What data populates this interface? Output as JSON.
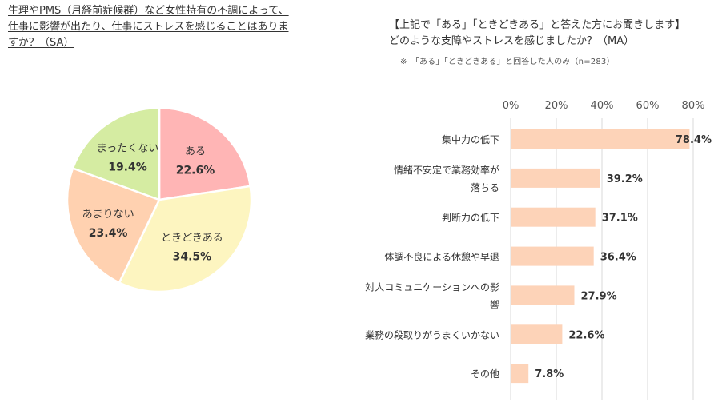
{
  "left_question": {
    "line1": "生理やPMS（月経前症候群）など女性特有の不調によって、",
    "line2": "仕事に影響が出たり、仕事にストレスを感じることはありま",
    "line3": "すか？（SA）"
  },
  "right_question": {
    "line1": "【上記で「ある」「ときどきある」と答えた方にお聞きします】",
    "line2": "どのような支障やストレスを感じましたか？（MA）",
    "note": "※　「ある」「ときどきある」と回答した人のみ（n=283）"
  },
  "chart_data": [
    {
      "type": "pie",
      "slices": [
        {
          "label": "ある",
          "value": 22.6,
          "display": "22.6%",
          "color": "#ffb5b5"
        },
        {
          "label": "ときどきある",
          "value": 34.5,
          "display": "34.5%",
          "color": "#fdf5c0"
        },
        {
          "label": "あまりない",
          "value": 23.4,
          "display": "23.4%",
          "color": "#ffd1b0"
        },
        {
          "label": "まったくない",
          "value": 19.4,
          "display": "19.4%",
          "color": "#d5eca2"
        }
      ]
    },
    {
      "type": "bar",
      "orientation": "horizontal",
      "categories": [
        [
          "集中力の低下"
        ],
        [
          "情緒不安定で業務効率が",
          "落ちる"
        ],
        [
          "判断力の低下"
        ],
        [
          "体調不良による休憩や早退"
        ],
        [
          "対人コミュニケーションへの影",
          "響"
        ],
        [
          "業務の段取りがうまくいかない"
        ],
        [
          "その他"
        ]
      ],
      "values": [
        78.4,
        39.2,
        37.1,
        36.4,
        27.9,
        22.6,
        7.8
      ],
      "value_labels": [
        "78.4%",
        "39.2%",
        "37.1%",
        "36.4%",
        "27.9%",
        "22.6%",
        "7.8%"
      ],
      "xlim": [
        0,
        80
      ],
      "ticks": [
        "0%",
        "20%",
        "40%",
        "60%",
        "80%"
      ],
      "grid": true,
      "bar_color": "#fdd3b8"
    }
  ]
}
